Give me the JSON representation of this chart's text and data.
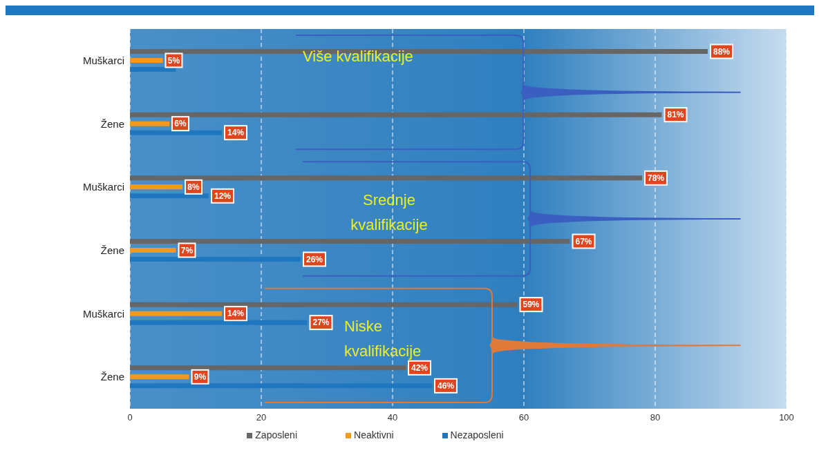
{
  "chart_data": {
    "type": "bar",
    "orientation": "horizontal",
    "categories": [
      "Muškarci",
      "Žene",
      "Muškarci",
      "Žene",
      "Muškarci",
      "Žene"
    ],
    "series": [
      {
        "name": "Zaposleni",
        "color": "#666666",
        "values": [
          88,
          81,
          78,
          67,
          59,
          42
        ],
        "value_labels": [
          "88%",
          "81%",
          "78%",
          "67%",
          "59%",
          "42%"
        ]
      },
      {
        "name": "Neaktivni",
        "color": "#f39a1e",
        "values": [
          5,
          6,
          8,
          7,
          14,
          9
        ],
        "value_labels": [
          "5%",
          "6%",
          "8%",
          "7%",
          "14%",
          "9%"
        ]
      },
      {
        "name": "Nezaposleni",
        "color": "#1f77c0",
        "values": [
          7,
          14,
          12,
          26,
          27,
          46
        ],
        "value_labels": [
          null,
          "14%",
          "12%",
          "26%",
          "27%",
          "46%"
        ]
      }
    ],
    "xlim": [
      0,
      100
    ],
    "xticks": [
      0,
      20,
      40,
      60,
      80,
      100
    ],
    "grid": "x",
    "legend": "bottom",
    "annotations": [
      "Više kvalifikacije",
      "Srednje kvalifikacije",
      "Niske kvalifikacije"
    ]
  }
}
